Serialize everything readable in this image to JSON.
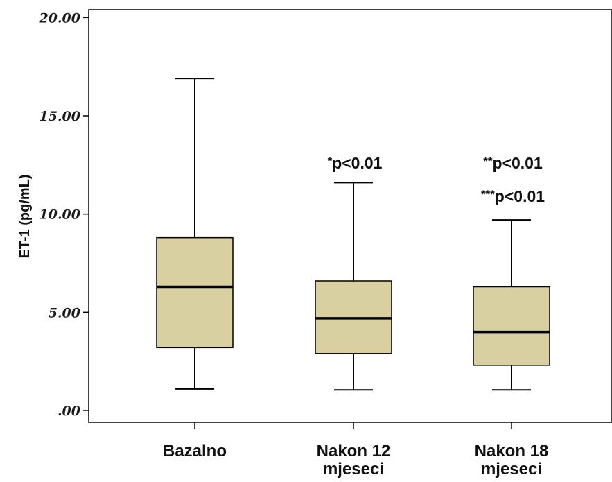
{
  "chart_data": {
    "type": "box",
    "ylabel": "ET-1 (pg/mL)",
    "ylim": [
      -0.6,
      20.4
    ],
    "yticks": [
      {
        "value": 0,
        "label": ".00"
      },
      {
        "value": 5,
        "label": "5.00"
      },
      {
        "value": 10,
        "label": "10.00"
      },
      {
        "value": 15,
        "label": "15.00"
      },
      {
        "value": 20,
        "label": "20.00"
      }
    ],
    "categories": [
      {
        "lines": [
          "Bazalno"
        ]
      },
      {
        "lines": [
          "Nakon 12",
          "mjeseci"
        ]
      },
      {
        "lines": [
          "Nakon 18",
          "mjeseci"
        ]
      }
    ],
    "boxes": [
      {
        "min": 1.1,
        "q1": 3.2,
        "median": 6.3,
        "q3": 8.8,
        "max": 16.9
      },
      {
        "min": 1.05,
        "q1": 2.9,
        "median": 4.7,
        "q3": 6.6,
        "max": 11.6
      },
      {
        "min": 1.05,
        "q1": 2.3,
        "median": 4.0,
        "q3": 6.3,
        "max": 9.7
      }
    ],
    "annotations": [
      {
        "category": 1,
        "stars": "*",
        "text": "p<0.01",
        "y": 12.6
      },
      {
        "category": 2,
        "stars": "**",
        "text": "p<0.01",
        "y": 12.6
      },
      {
        "category": 2,
        "stars": "***",
        "text": "p<0.01",
        "y": 10.9
      }
    ],
    "colors": {
      "box_fill": "#d8d0a0",
      "stroke": "#000000"
    },
    "grid": false
  }
}
